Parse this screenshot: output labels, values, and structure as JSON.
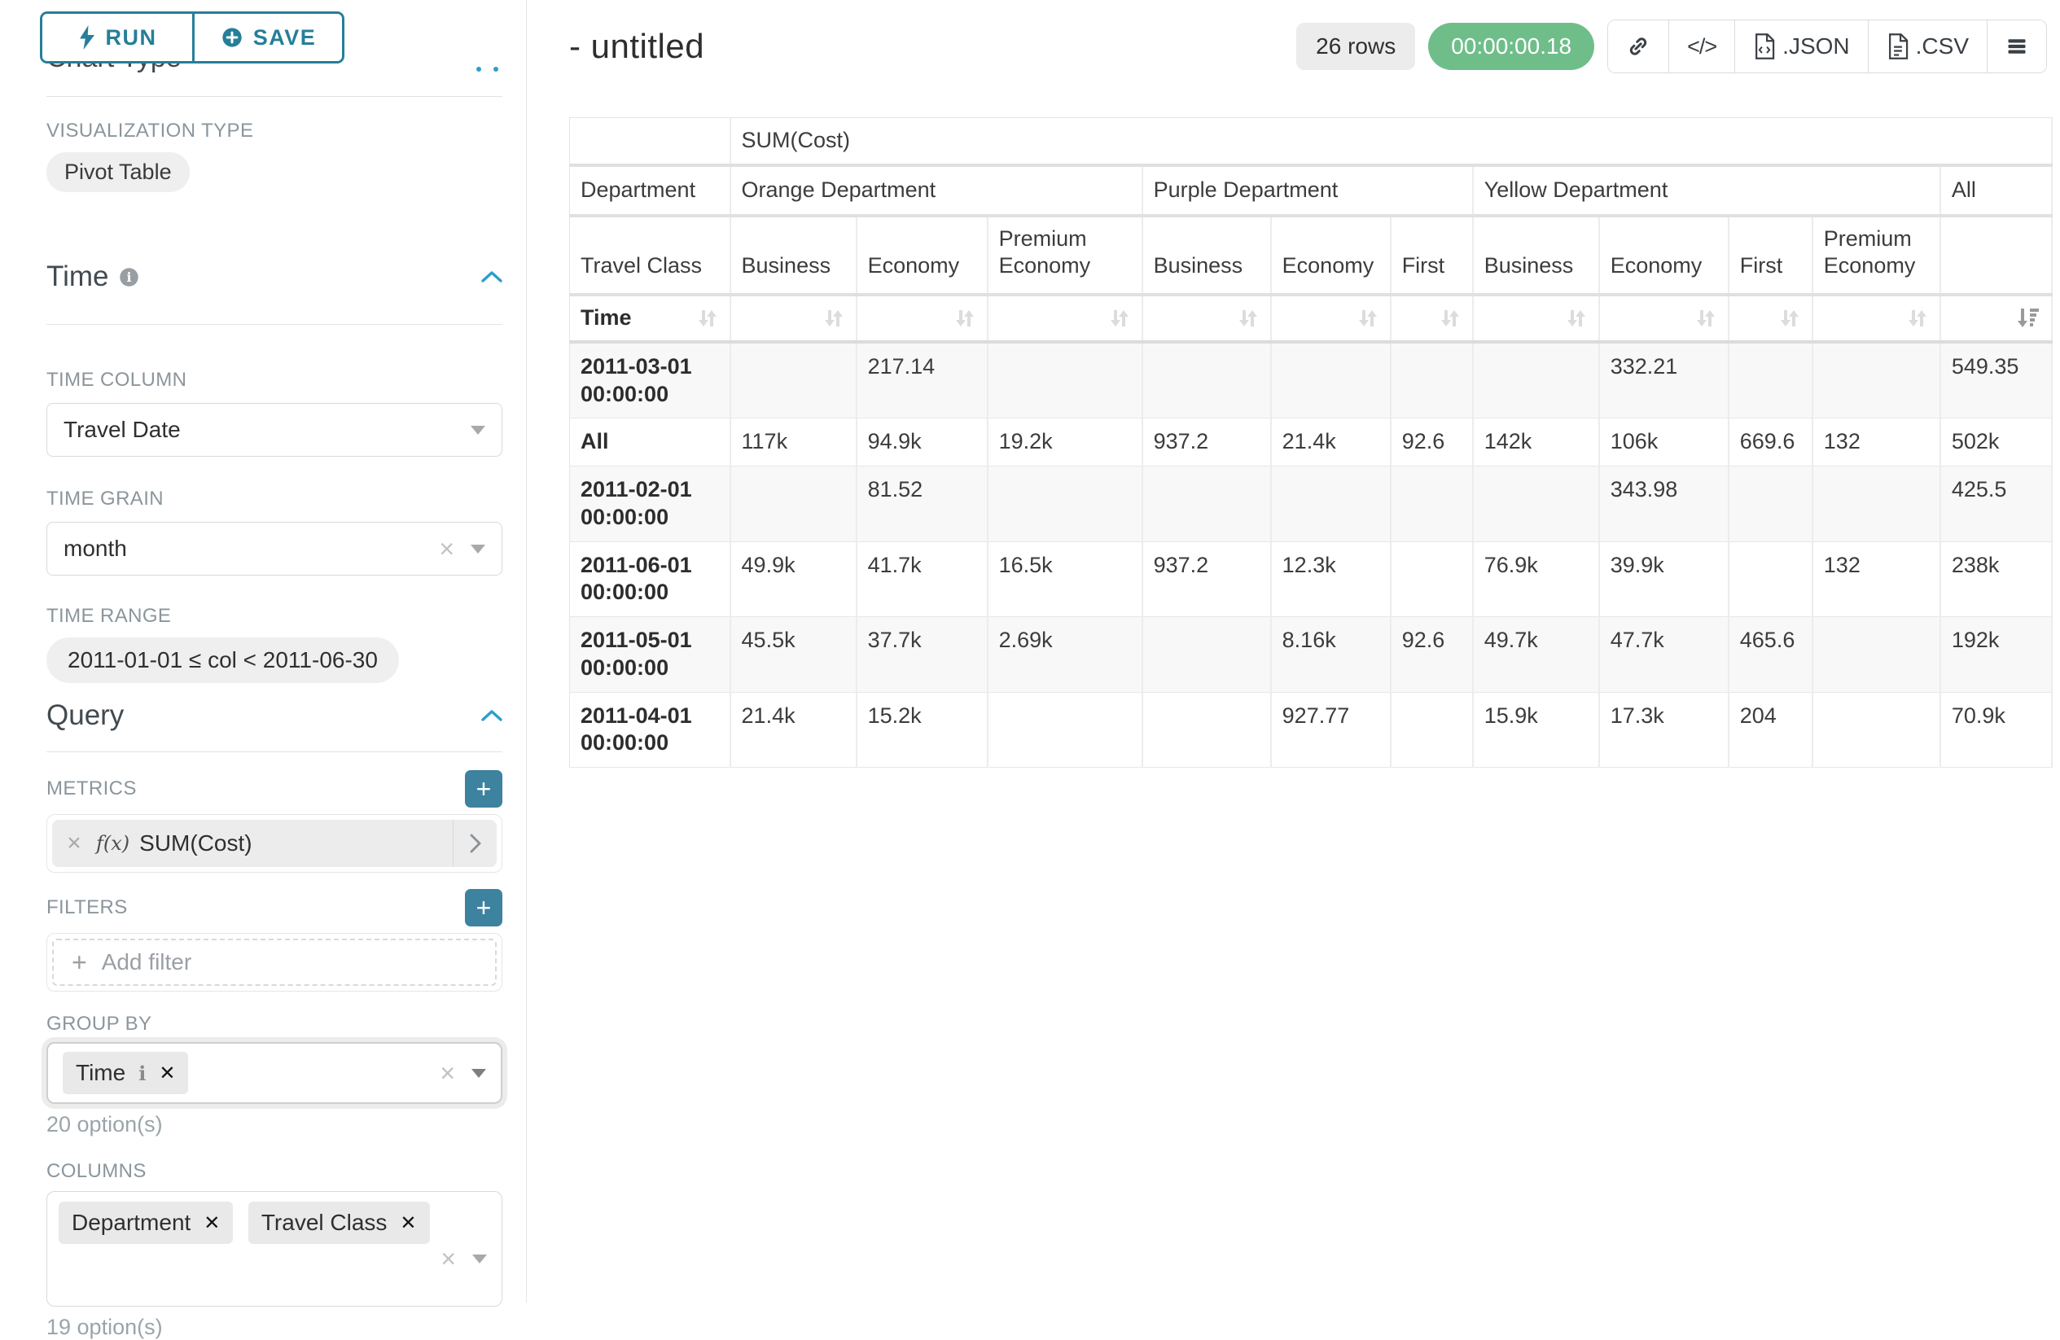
{
  "sidebar": {
    "run_label": "RUN",
    "save_label": "SAVE",
    "chart_type_heading": "Chart Type",
    "visualization_type_label": "VISUALIZATION TYPE",
    "visualization_type_value": "Pivot Table",
    "time_section": {
      "title": "Time",
      "time_column_label": "TIME COLUMN",
      "time_column_value": "Travel Date",
      "time_grain_label": "TIME GRAIN",
      "time_grain_value": "month",
      "time_range_label": "TIME RANGE",
      "time_range_value": "2011-01-01 ≤ col < 2011-06-30"
    },
    "query_section": {
      "title": "Query",
      "metrics_label": "METRICS",
      "metric_prefix": "f(x)",
      "metric_value": "SUM(Cost)",
      "filters_label": "FILTERS",
      "add_filter_label": "Add filter",
      "group_by_label": "GROUP BY",
      "group_by_value": "Time",
      "group_by_hint": "20 option(s)",
      "columns_label": "COLUMNS",
      "columns_values": [
        "Department",
        "Travel Class"
      ],
      "columns_hint": "19 option(s)"
    }
  },
  "header": {
    "title": "- untitled",
    "row_count": "26 rows",
    "timer": "00:00:00.18",
    "export_json_label": ".JSON",
    "export_csv_label": ".CSV"
  },
  "colors": {
    "accent_teal": "#267e99",
    "plus_button_teal": "#3d829e",
    "timer_green": "#6fbe8a",
    "collapse_chevron_blue": "#2a9fc9"
  },
  "pivot_table": {
    "type": "pivot-table",
    "metric_label": "SUM(Cost)",
    "col_dim_label": "Department",
    "col_dim2_label": "Travel Class",
    "row_dim_label": "Time",
    "col_groups": [
      {
        "label": "Orange Department",
        "children": [
          "Business",
          "Economy",
          "Premium Economy"
        ]
      },
      {
        "label": "Purple Department",
        "children": [
          "Business",
          "Economy",
          "First"
        ]
      },
      {
        "label": "Yellow Department",
        "children": [
          "Business",
          "Economy",
          "First",
          "Premium Economy"
        ]
      },
      {
        "label": "All",
        "children": [
          ""
        ]
      }
    ],
    "rows": [
      {
        "label": "2011-03-01 00:00:00",
        "values": [
          "",
          "217.14",
          "",
          "",
          "",
          "",
          "",
          "332.21",
          "",
          "",
          "549.35"
        ]
      },
      {
        "label": "All",
        "values": [
          "117k",
          "94.9k",
          "19.2k",
          "937.2",
          "21.4k",
          "92.6",
          "142k",
          "106k",
          "669.6",
          "132",
          "502k"
        ]
      },
      {
        "label": "2011-02-01 00:00:00",
        "values": [
          "",
          "81.52",
          "",
          "",
          "",
          "",
          "",
          "343.98",
          "",
          "",
          "425.5"
        ]
      },
      {
        "label": "2011-06-01 00:00:00",
        "values": [
          "49.9k",
          "41.7k",
          "16.5k",
          "937.2",
          "12.3k",
          "",
          "76.9k",
          "39.9k",
          "",
          "132",
          "238k"
        ]
      },
      {
        "label": "2011-05-01 00:00:00",
        "values": [
          "45.5k",
          "37.7k",
          "2.69k",
          "",
          "8.16k",
          "92.6",
          "49.7k",
          "47.7k",
          "465.6",
          "",
          "192k"
        ]
      },
      {
        "label": "2011-04-01 00:00:00",
        "values": [
          "21.4k",
          "15.2k",
          "",
          "",
          "927.77",
          "",
          "15.9k",
          "17.3k",
          "204",
          "",
          "70.9k"
        ]
      }
    ]
  }
}
